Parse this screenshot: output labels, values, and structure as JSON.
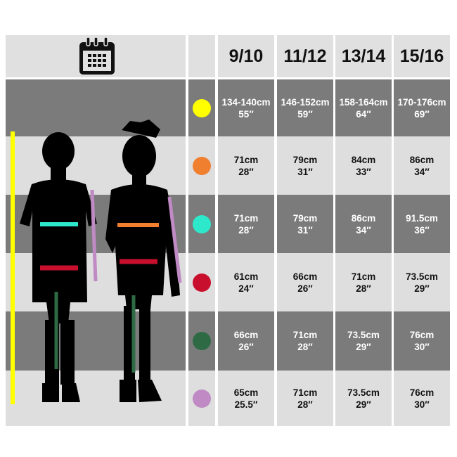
{
  "header": {
    "icon": "calendar-icon",
    "sizes": [
      "9/10",
      "11/12",
      "13/14",
      "15/16"
    ]
  },
  "rows": [
    {
      "measure_color": "#ffff00",
      "values": [
        [
          "134-140cm",
          "55″"
        ],
        [
          "146-152cm",
          "59″"
        ],
        [
          "158-164cm",
          "64″"
        ],
        [
          "170-176cm",
          "69″"
        ]
      ]
    },
    {
      "measure_color": "#f07f30",
      "values": [
        [
          "71cm",
          "28″"
        ],
        [
          "79cm",
          "31″"
        ],
        [
          "84cm",
          "33″"
        ],
        [
          "86cm",
          "34″"
        ]
      ]
    },
    {
      "measure_color": "#2ee8cc",
      "values": [
        [
          "71cm",
          "28″"
        ],
        [
          "79cm",
          "31″"
        ],
        [
          "86cm",
          "34″"
        ],
        [
          "91.5cm",
          "36″"
        ]
      ]
    },
    {
      "measure_color": "#c8102e",
      "values": [
        [
          "61cm",
          "24″"
        ],
        [
          "66cm",
          "26″"
        ],
        [
          "71cm",
          "28″"
        ],
        [
          "73.5cm",
          "29″"
        ]
      ]
    },
    {
      "measure_color": "#2e6b45",
      "values": [
        [
          "66cm",
          "26″"
        ],
        [
          "71cm",
          "28″"
        ],
        [
          "73.5cm",
          "29″"
        ],
        [
          "76cm",
          "30″"
        ]
      ]
    },
    {
      "measure_color": "#c08ac4",
      "values": [
        [
          "65cm",
          "25.5″"
        ],
        [
          "71cm",
          "28″"
        ],
        [
          "73.5cm",
          "29″"
        ],
        [
          "76cm",
          "30″"
        ]
      ]
    }
  ],
  "colors": {
    "dark_row": "#7b7b7b",
    "light_row": "#dedede",
    "header": "#e0e0e0"
  }
}
